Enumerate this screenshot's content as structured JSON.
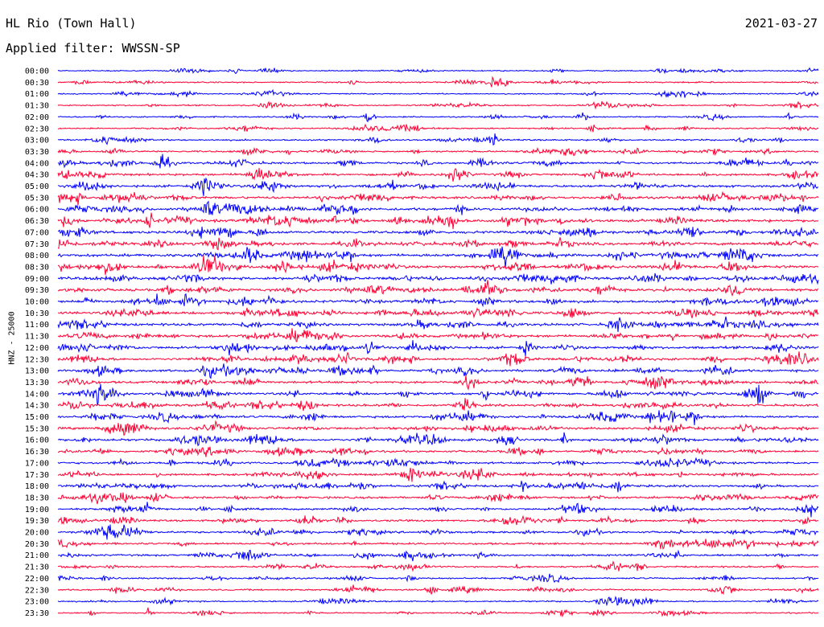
{
  "header": {
    "station": "HL Rio (Town Hall)",
    "date": "2021-03-27",
    "filter": "Applied filter: WWSSN-SP"
  },
  "chart_data": {
    "type": "line",
    "title": "HL Rio (Town Hall)",
    "subtitle": "Applied filter: WWSSN-SP",
    "xlabel": "",
    "ylabel": "HNZ - 25000",
    "trace_labels": [
      "00:00",
      "00:30",
      "01:00",
      "01:30",
      "02:00",
      "02:30",
      "03:00",
      "03:30",
      "04:00",
      "04:30",
      "05:00",
      "05:30",
      "06:00",
      "06:30",
      "07:00",
      "07:30",
      "08:00",
      "08:30",
      "09:00",
      "09:30",
      "10:00",
      "10:30",
      "11:00",
      "11:30",
      "12:00",
      "12:30",
      "13:00",
      "13:30",
      "14:00",
      "14:30",
      "15:00",
      "15:30",
      "16:00",
      "16:30",
      "17:00",
      "17:30",
      "18:00",
      "18:30",
      "19:00",
      "19:30",
      "20:00",
      "20:30",
      "21:00",
      "21:30",
      "22:00",
      "22:30",
      "23:00",
      "23:30"
    ],
    "trace_colors": [
      "#0000ff",
      "#ff0033"
    ],
    "grid": false,
    "activity_level": [
      0.15,
      0.2,
      0.2,
      0.2,
      0.2,
      0.25,
      0.3,
      0.35,
      0.45,
      0.5,
      0.6,
      0.6,
      0.7,
      0.7,
      0.7,
      0.7,
      0.75,
      0.75,
      0.7,
      0.7,
      0.65,
      0.65,
      0.65,
      0.65,
      0.65,
      0.6,
      0.6,
      0.6,
      0.55,
      0.55,
      0.55,
      0.55,
      0.55,
      0.5,
      0.5,
      0.5,
      0.5,
      0.5,
      0.45,
      0.45,
      0.45,
      0.45,
      0.4,
      0.35,
      0.3,
      0.3,
      0.25,
      0.2
    ]
  }
}
